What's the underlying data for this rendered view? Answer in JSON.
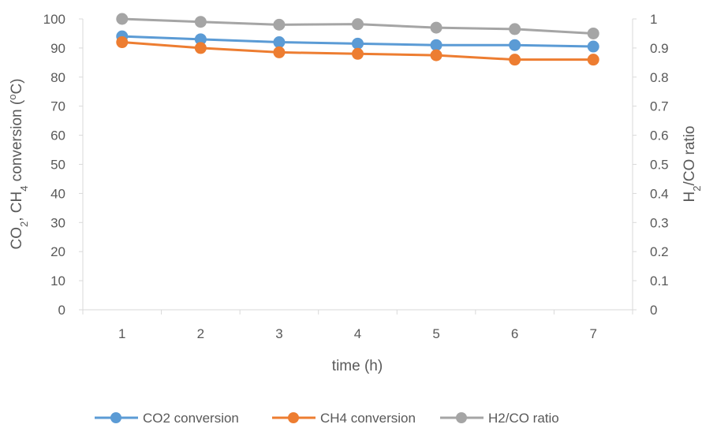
{
  "chart_data": {
    "type": "line",
    "title": "",
    "xlabel": "time (h)",
    "ylabel_left_parts": [
      "CO",
      "2",
      ", CH",
      "4",
      " conversion (",
      "o",
      "C)"
    ],
    "ylabel_right_parts": [
      "H",
      "2",
      "/CO ratio"
    ],
    "x": [
      1,
      2,
      3,
      4,
      5,
      6,
      7
    ],
    "x_tick_labels": [
      "1",
      "2",
      "3",
      "4",
      "5",
      "6",
      "7"
    ],
    "ylim_left": [
      0,
      100
    ],
    "y_ticks_left": [
      "0",
      "10",
      "20",
      "30",
      "40",
      "50",
      "60",
      "70",
      "80",
      "90",
      "100"
    ],
    "ylim_right": [
      0,
      1
    ],
    "y_ticks_right": [
      "0",
      "0.1",
      "0.2",
      "0.3",
      "0.4",
      "0.5",
      "0.6",
      "0.7",
      "0.8",
      "0.9",
      "1"
    ],
    "grid": false,
    "legend_position": "bottom",
    "series": [
      {
        "name": "CO2 conversion",
        "axis": "left",
        "color": "#5B9BD5",
        "values": [
          94,
          93,
          92,
          91.5,
          91,
          91,
          90.5
        ]
      },
      {
        "name": "CH4 conversion",
        "axis": "left",
        "color": "#ED7D31",
        "values": [
          92,
          90,
          88.5,
          88,
          87.5,
          86,
          86
        ]
      },
      {
        "name": "H2/CO ratio",
        "axis": "right",
        "color": "#A5A5A5",
        "values": [
          1.0,
          0.99,
          0.98,
          0.982,
          0.97,
          0.965,
          0.95
        ]
      }
    ]
  }
}
